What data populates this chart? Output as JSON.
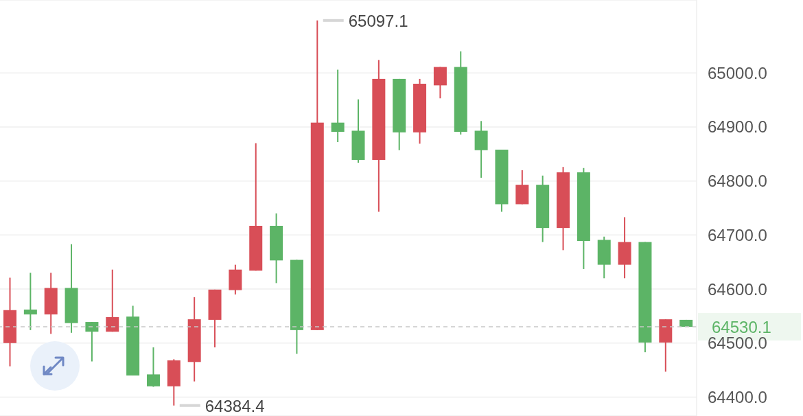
{
  "chart_data": {
    "type": "candlestick",
    "categories": [
      null,
      null,
      null,
      null,
      null,
      null,
      null,
      null,
      null,
      null,
      null,
      null,
      null,
      null,
      null,
      null,
      null,
      null,
      null,
      null,
      null,
      null,
      null,
      null,
      null,
      null,
      null,
      null,
      null,
      null,
      null,
      null,
      null,
      null
    ],
    "ohlc": [
      [
        64561,
        64621,
        64457,
        64500
      ],
      [
        64553,
        64630,
        64524,
        64562
      ],
      [
        64602,
        64630,
        64517,
        64553
      ],
      [
        64537,
        64683,
        64519,
        64602
      ],
      [
        64521,
        64539,
        64466,
        64539
      ],
      [
        64548,
        64636,
        64521,
        64521
      ],
      [
        64440,
        64569,
        64440,
        64549
      ],
      [
        64420,
        64492,
        64419,
        64442
      ],
      [
        64468,
        64470,
        64384.4,
        64420
      ],
      [
        64544,
        64585,
        64429,
        64465
      ],
      [
        64599,
        64599,
        64492,
        64543
      ],
      [
        64636,
        64645,
        64590,
        64598
      ],
      [
        64717,
        64870,
        64634,
        64634
      ],
      [
        64653,
        64740,
        64611,
        64717
      ],
      [
        64524,
        64654,
        64480,
        64654
      ],
      [
        64908,
        65097.1,
        64524,
        64524
      ],
      [
        64891,
        65006,
        64872,
        64908
      ],
      [
        64839,
        64951,
        64834,
        64893
      ],
      [
        64989,
        65024,
        64743,
        64839
      ],
      [
        64890,
        64989,
        64857,
        64989
      ],
      [
        64980,
        64989,
        64869,
        64890
      ],
      [
        65011,
        65011,
        64953,
        64977
      ],
      [
        64891,
        65040,
        64886,
        65011
      ],
      [
        64857,
        64911,
        64806,
        64893
      ],
      [
        64757,
        64858,
        64743,
        64858
      ],
      [
        64793,
        64820,
        64757,
        64757
      ],
      [
        64713,
        64810,
        64687,
        64793
      ],
      [
        64816,
        64826,
        64672,
        64713
      ],
      [
        64689,
        64824,
        64637,
        64816
      ],
      [
        64645,
        64697,
        64620,
        64691
      ],
      [
        64687,
        64733,
        64620,
        64645
      ],
      [
        64501,
        64687,
        64483,
        64687
      ],
      [
        64544,
        64544,
        64447,
        64501
      ],
      [
        64530,
        64543,
        64530,
        64543
      ]
    ],
    "colors": [
      "#d84e57",
      "#5cb466",
      "#d84e57",
      "#5cb466",
      "#5cb466",
      "#d84e57",
      "#5cb466",
      "#5cb466",
      "#d84e57",
      "#d84e57",
      "#d84e57",
      "#d84e57",
      "#d84e57",
      "#5cb466",
      "#5cb466",
      "#d84e57",
      "#5cb466",
      "#5cb466",
      "#d84e57",
      "#5cb466",
      "#d84e57",
      "#d84e57",
      "#5cb466",
      "#5cb466",
      "#5cb466",
      "#d84e57",
      "#5cb466",
      "#d84e57",
      "#5cb466",
      "#5cb466",
      "#d84e57",
      "#5cb466",
      "#d84e57",
      "#5cb466"
    ],
    "ylim": [
      64365,
      65135
    ],
    "yticks": [
      {
        "value": 64400,
        "label": "64400.0"
      },
      {
        "value": 64500,
        "label": "64500.0"
      },
      {
        "value": 64600,
        "label": "64600.0"
      },
      {
        "value": 64700,
        "label": "64700.0"
      },
      {
        "value": 64800,
        "label": "64800.0"
      },
      {
        "value": 64900,
        "label": "64900.0"
      },
      {
        "value": 65000,
        "label": "65000.0"
      }
    ],
    "grid": "y",
    "tick_labels": "y",
    "ref_lines": [
      {
        "axis": "y",
        "value": 64530.1,
        "label": "64530.1",
        "color": "#c8c8c8",
        "line_style": "dashed"
      }
    ],
    "annotations": [
      "65097.1",
      "64384.4"
    ]
  }
}
